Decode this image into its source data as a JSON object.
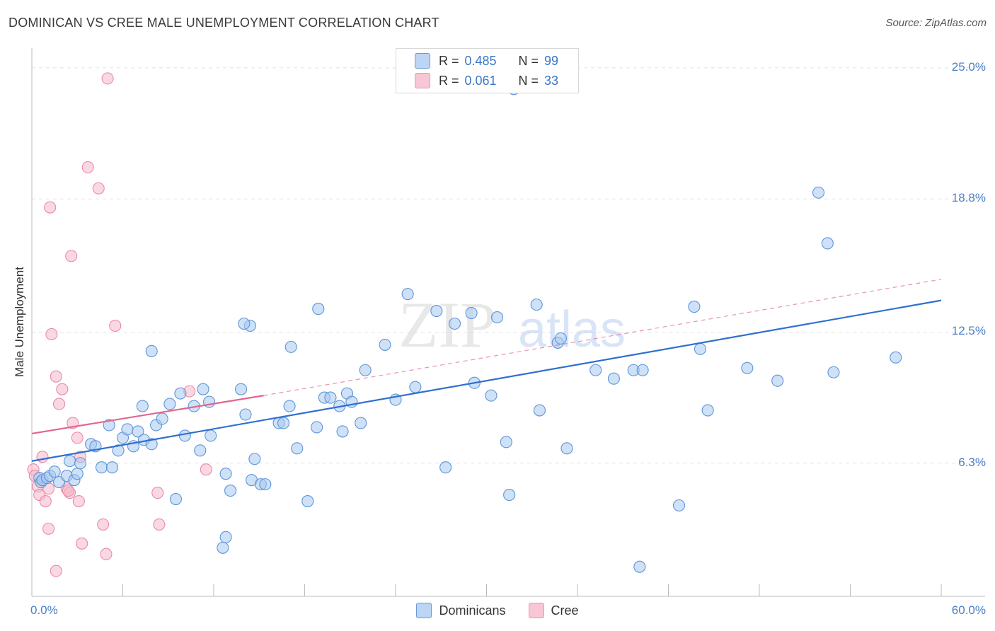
{
  "title": "DOMINICAN VS CREE MALE UNEMPLOYMENT CORRELATION CHART",
  "source": "Source: ZipAtlas.com",
  "watermark": {
    "zip": "ZIP",
    "atlas": "atlas"
  },
  "colors": {
    "blue_fill": "#a8c8f0",
    "blue_stroke": "#5d95d8",
    "blue_line": "#2f6fce",
    "pink_fill": "#f5b8cb",
    "pink_stroke": "#e98aa8",
    "pink_line": "#e0668f",
    "grid": "#e2e2e2",
    "axis_text": "#4a7fc9"
  },
  "legend_top": {
    "rows": [
      {
        "r_label": "R =",
        "r_value": "0.485",
        "n_label": "N =",
        "n_value": "99"
      },
      {
        "r_label": "R =",
        "r_value": "0.061",
        "n_label": "N =",
        "n_value": "33"
      }
    ]
  },
  "legend_bottom": {
    "dominicans": "Dominicans",
    "cree": "Cree"
  },
  "chart_data": {
    "type": "scatter",
    "title": "DOMINICAN VS CREE MALE UNEMPLOYMENT CORRELATION CHART",
    "xlabel": "",
    "ylabel": "Male Unemployment",
    "x_tick_labels": {
      "min": "0.0%",
      "max": "60.0%"
    },
    "y_tick_labels": [
      "25.0%",
      "18.8%",
      "12.5%",
      "6.3%"
    ],
    "y_tick_values": [
      25.0,
      18.8,
      12.5,
      6.3
    ],
    "xlim": [
      0,
      60
    ],
    "ylim": [
      0,
      25.6
    ],
    "series": [
      {
        "name": "Dominicans",
        "R": 0.485,
        "N": 99,
        "trend": {
          "x": [
            0,
            60
          ],
          "y": [
            6.4,
            14.0
          ]
        },
        "points": [
          [
            0.5,
            5.6
          ],
          [
            0.6,
            5.4
          ],
          [
            0.7,
            5.5
          ],
          [
            1.0,
            5.6
          ],
          [
            1.2,
            5.7
          ],
          [
            1.5,
            5.9
          ],
          [
            1.8,
            5.4
          ],
          [
            2.3,
            5.7
          ],
          [
            2.8,
            5.5
          ],
          [
            3.0,
            5.8
          ],
          [
            2.5,
            6.4
          ],
          [
            3.2,
            6.3
          ],
          [
            3.9,
            7.2
          ],
          [
            4.2,
            7.1
          ],
          [
            4.6,
            6.1
          ],
          [
            5.1,
            8.1
          ],
          [
            5.3,
            6.1
          ],
          [
            5.7,
            6.9
          ],
          [
            6.0,
            7.5
          ],
          [
            6.3,
            7.9
          ],
          [
            6.7,
            7.1
          ],
          [
            7.0,
            7.8
          ],
          [
            7.4,
            7.4
          ],
          [
            7.9,
            7.2
          ],
          [
            8.2,
            8.1
          ],
          [
            8.6,
            8.4
          ],
          [
            9.1,
            9.1
          ],
          [
            7.3,
            9.0
          ],
          [
            7.9,
            11.6
          ],
          [
            9.5,
            4.6
          ],
          [
            9.8,
            9.6
          ],
          [
            10.1,
            7.6
          ],
          [
            10.7,
            9.0
          ],
          [
            11.1,
            6.9
          ],
          [
            11.3,
            9.8
          ],
          [
            11.7,
            9.2
          ],
          [
            11.8,
            7.6
          ],
          [
            12.8,
            5.8
          ],
          [
            13.1,
            5.0
          ],
          [
            12.6,
            2.3
          ],
          [
            12.8,
            2.8
          ],
          [
            13.8,
            9.8
          ],
          [
            14.1,
            8.6
          ],
          [
            14.4,
            12.8
          ],
          [
            14.0,
            12.9
          ],
          [
            14.5,
            5.5
          ],
          [
            14.7,
            6.5
          ],
          [
            15.1,
            5.3
          ],
          [
            15.4,
            5.3
          ],
          [
            16.3,
            8.2
          ],
          [
            16.6,
            8.2
          ],
          [
            17.0,
            9.0
          ],
          [
            17.1,
            11.8
          ],
          [
            17.5,
            7.0
          ],
          [
            18.2,
            4.5
          ],
          [
            18.8,
            8.0
          ],
          [
            18.9,
            13.6
          ],
          [
            19.3,
            9.4
          ],
          [
            19.7,
            9.4
          ],
          [
            20.3,
            9.0
          ],
          [
            20.5,
            7.8
          ],
          [
            20.8,
            9.6
          ],
          [
            21.1,
            9.2
          ],
          [
            21.7,
            8.2
          ],
          [
            22.0,
            10.7
          ],
          [
            23.3,
            11.9
          ],
          [
            24.0,
            9.3
          ],
          [
            24.8,
            14.3
          ],
          [
            25.3,
            9.9
          ],
          [
            26.7,
            13.5
          ],
          [
            27.3,
            6.1
          ],
          [
            27.9,
            12.9
          ],
          [
            29.0,
            13.4
          ],
          [
            29.2,
            10.1
          ],
          [
            30.3,
            9.5
          ],
          [
            30.7,
            13.2
          ],
          [
            31.3,
            7.3
          ],
          [
            31.5,
            4.8
          ],
          [
            31.8,
            24.0
          ],
          [
            33.3,
            13.8
          ],
          [
            33.5,
            8.8
          ],
          [
            34.7,
            12.0
          ],
          [
            34.9,
            12.2
          ],
          [
            35.3,
            7.0
          ],
          [
            37.2,
            10.7
          ],
          [
            38.4,
            10.3
          ],
          [
            39.7,
            10.7
          ],
          [
            40.3,
            10.7
          ],
          [
            40.1,
            1.4
          ],
          [
            42.7,
            4.3
          ],
          [
            43.7,
            13.7
          ],
          [
            44.1,
            11.7
          ],
          [
            44.6,
            8.8
          ],
          [
            47.2,
            10.8
          ],
          [
            49.2,
            10.2
          ],
          [
            51.9,
            19.1
          ],
          [
            52.5,
            16.7
          ],
          [
            52.9,
            10.6
          ],
          [
            57.0,
            11.3
          ]
        ]
      },
      {
        "name": "Cree",
        "R": 0.061,
        "N": 33,
        "trend": {
          "x": [
            0,
            15.3
          ],
          "y": [
            7.7,
            9.5
          ]
        },
        "trend_dashed": {
          "x": [
            15.3,
            60
          ],
          "y": [
            9.5,
            15.0
          ]
        },
        "points": [
          [
            0.1,
            6.0
          ],
          [
            0.2,
            5.7
          ],
          [
            0.4,
            5.2
          ],
          [
            0.5,
            4.8
          ],
          [
            0.9,
            4.5
          ],
          [
            1.1,
            5.1
          ],
          [
            1.1,
            3.2
          ],
          [
            1.2,
            18.4
          ],
          [
            1.3,
            12.4
          ],
          [
            1.6,
            10.4
          ],
          [
            1.8,
            9.1
          ],
          [
            2.0,
            9.8
          ],
          [
            2.3,
            5.1
          ],
          [
            2.5,
            4.9
          ],
          [
            2.6,
            16.1
          ],
          [
            2.7,
            8.2
          ],
          [
            3.0,
            7.5
          ],
          [
            3.2,
            6.6
          ],
          [
            3.3,
            2.5
          ],
          [
            3.7,
            20.3
          ],
          [
            4.4,
            19.3
          ],
          [
            4.7,
            3.4
          ],
          [
            4.9,
            2.0
          ],
          [
            5.0,
            24.5
          ],
          [
            5.5,
            12.8
          ],
          [
            8.3,
            4.9
          ],
          [
            8.4,
            3.4
          ],
          [
            10.4,
            9.7
          ],
          [
            11.5,
            6.0
          ],
          [
            1.6,
            1.2
          ],
          [
            2.4,
            5.0
          ],
          [
            3.1,
            4.5
          ],
          [
            0.7,
            6.6
          ]
        ]
      }
    ]
  }
}
